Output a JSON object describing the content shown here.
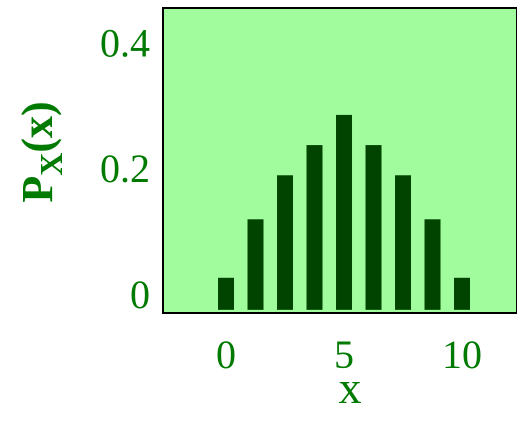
{
  "chart_data": {
    "type": "bar",
    "xlabel": "x",
    "ylabel": {
      "base": "P",
      "sub": "X",
      "rest": "(x)"
    },
    "x": [
      0,
      1.25,
      2.5,
      3.75,
      5,
      6.25,
      7.5,
      8.75,
      10
    ],
    "values": [
      0.051,
      0.144,
      0.214,
      0.262,
      0.31,
      0.262,
      0.214,
      0.144,
      0.051
    ],
    "color": "#004400",
    "background": "#a0fc9c",
    "xlim": [
      -2.67,
      12.33
    ],
    "xticks": [
      0,
      5,
      10
    ],
    "ylim": [
      -0.005,
      0.48
    ],
    "yticks": [
      0,
      0.2,
      0.4
    ]
  }
}
